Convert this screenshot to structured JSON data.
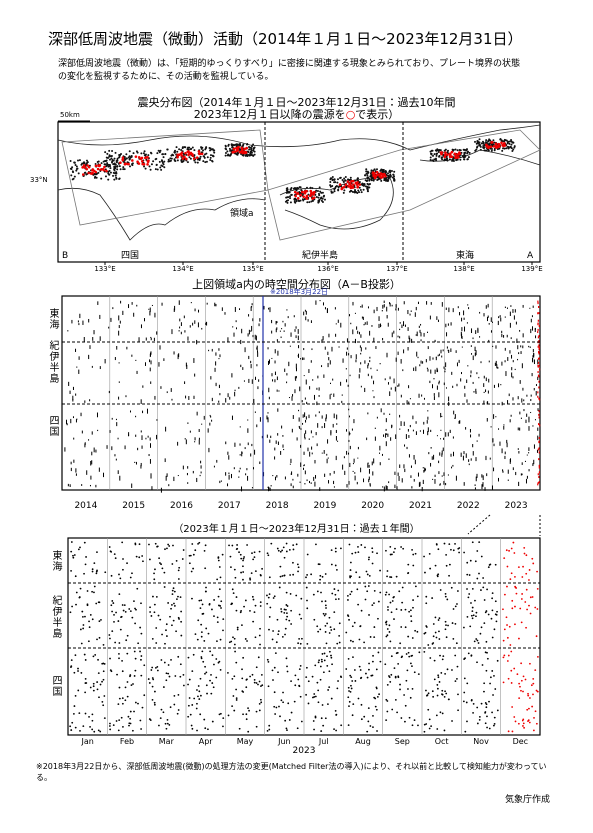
{
  "header": {
    "title": "深部低周波地震（微動）活動（2014年１月１日～2023年12月31日）"
  },
  "intro": "深部低周波地震（微動）は、「短期的ゆっくりすべり」に密接に関連する現象とみられており、プレート境界の状態の変化を監視するために、その活動を監視している。",
  "map": {
    "title_line1": "震央分布図（2014年１月１日～2023年12月31日：過去10年間",
    "title_line2_pre": "2023年12月１日以降の震源を",
    "title_line2_symbol": "○",
    "title_line2_post": "で表示）",
    "scale": "50km",
    "latitude": "33°N",
    "region": "領域a",
    "end_b": "B",
    "end_a": "A",
    "areas": [
      "四国",
      "紀伊半島",
      "東海"
    ],
    "lon_ticks": [
      "133°E",
      "134°E",
      "135°E",
      "136°E",
      "137°E",
      "138°E",
      "139°E"
    ]
  },
  "timespace": {
    "title": "上図領域a内の時空間分布図（A－B投影）",
    "note": "※2018年3月22日",
    "regions": [
      "東海",
      "紀伊半島",
      "四国"
    ],
    "years": [
      "2014",
      "2015",
      "2016",
      "2017",
      "2018",
      "2019",
      "2020",
      "2021",
      "2022",
      "2023"
    ]
  },
  "recent": {
    "title": "（2023年１月１日～2023年12月31日：過去１年間）",
    "regions": [
      "東海",
      "紀伊半島",
      "四国"
    ],
    "months": [
      "Jan",
      "Feb",
      "Mar",
      "Apr",
      "May",
      "Jun",
      "Jul",
      "Aug",
      "Sep",
      "Oct",
      "Nov",
      "Dec"
    ],
    "year": "2023"
  },
  "footnote": "※2018年3月22日から、深部低周波地震(微動)の処理方法の変更(Matched Filter法の導入)により、それ以前と比較して検知能力が変わっている。",
  "credit": "気象庁作成"
}
